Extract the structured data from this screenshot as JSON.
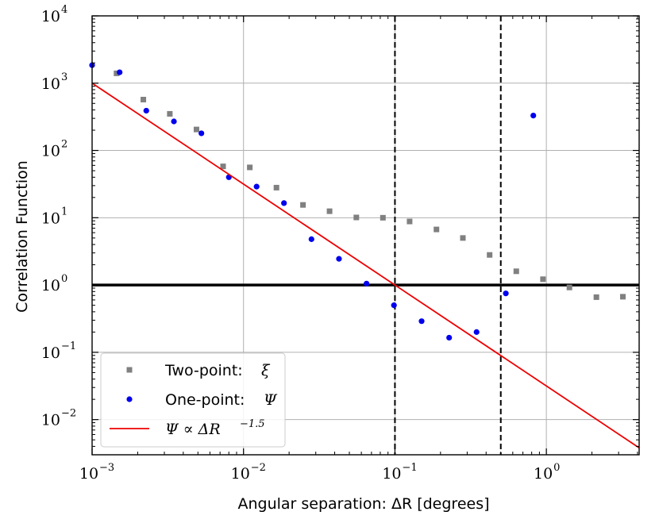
{
  "chart_data": {
    "type": "scatter",
    "title": "",
    "xlabel": "Angular separation: ΔR [degrees]",
    "ylabel": "Correlation Function",
    "xscale": "log",
    "yscale": "log",
    "xlim": [
      0.001,
      4.1
    ],
    "ylim": [
      0.003,
      10000
    ],
    "grid": true,
    "legend_position": "lower-left",
    "x_ticks": [
      {
        "value": 0.001,
        "base": "10",
        "exp": "−3"
      },
      {
        "value": 0.01,
        "base": "10",
        "exp": "−2"
      },
      {
        "value": 0.1,
        "base": "10",
        "exp": "−1"
      },
      {
        "value": 1,
        "base": "10",
        "exp": "0"
      }
    ],
    "y_ticks": [
      {
        "value": 0.01,
        "base": "10",
        "exp": "−2"
      },
      {
        "value": 0.1,
        "base": "10",
        "exp": "−1"
      },
      {
        "value": 1,
        "base": "10",
        "exp": "0"
      },
      {
        "value": 10,
        "base": "10",
        "exp": "1"
      },
      {
        "value": 100,
        "base": "10",
        "exp": "2"
      },
      {
        "value": 1000,
        "base": "10",
        "exp": "3"
      },
      {
        "value": 10000,
        "base": "10",
        "exp": "4"
      }
    ],
    "series": [
      {
        "name": "Two-point: ξ",
        "label_text": "Two-point: ",
        "label_math": "ξ",
        "marker": "square",
        "color": "#808080",
        "points": [
          [
            0.00145,
            1400
          ],
          [
            0.00218,
            570
          ],
          [
            0.00326,
            350
          ],
          [
            0.00489,
            205
          ],
          [
            0.00733,
            58
          ],
          [
            0.011,
            56
          ],
          [
            0.0165,
            28
          ],
          [
            0.0247,
            15.5
          ],
          [
            0.037,
            12.5
          ],
          [
            0.0556,
            10.1
          ],
          [
            0.0833,
            10.0
          ],
          [
            0.125,
            8.8
          ],
          [
            0.188,
            6.7
          ],
          [
            0.281,
            5.0
          ],
          [
            0.422,
            2.8
          ],
          [
            0.633,
            1.6
          ],
          [
            0.95,
            1.22
          ],
          [
            1.42,
            0.92
          ],
          [
            2.14,
            0.66
          ],
          [
            3.2,
            0.67
          ]
        ]
      },
      {
        "name": "One-point: Ψ",
        "label_text": "One-point: ",
        "label_math": "Ψ",
        "marker": "circle",
        "color": "#0000ee",
        "points": [
          [
            0.001,
            1850
          ],
          [
            0.00152,
            1450
          ],
          [
            0.00228,
            390
          ],
          [
            0.00347,
            270
          ],
          [
            0.00527,
            180
          ],
          [
            0.008,
            40
          ],
          [
            0.0122,
            29
          ],
          [
            0.0185,
            16.5
          ],
          [
            0.0281,
            4.8
          ],
          [
            0.0427,
            2.45
          ],
          [
            0.0649,
            1.05
          ],
          [
            0.0985,
            0.5
          ],
          [
            0.15,
            0.29
          ],
          [
            0.228,
            0.165
          ],
          [
            0.346,
            0.2
          ],
          [
            0.54,
            0.75
          ],
          [
            0.82,
            330
          ]
        ]
      },
      {
        "name": "Ψ ∝ ΔR^−1.5",
        "label_math": "Ψ ∝ ΔR",
        "label_exp": "−1.5",
        "type": "line",
        "color": "#ee0000",
        "x": [
          0.001,
          4.1
        ],
        "y": [
          1000,
          0.003809
        ]
      }
    ],
    "reference_lines": [
      {
        "orientation": "horizontal",
        "value": 1,
        "style": "solid",
        "color": "#000000"
      },
      {
        "orientation": "vertical",
        "value": 0.1,
        "style": "dashed",
        "color": "#000000"
      },
      {
        "orientation": "vertical",
        "value": 0.5,
        "style": "dashed",
        "color": "#000000"
      }
    ]
  }
}
